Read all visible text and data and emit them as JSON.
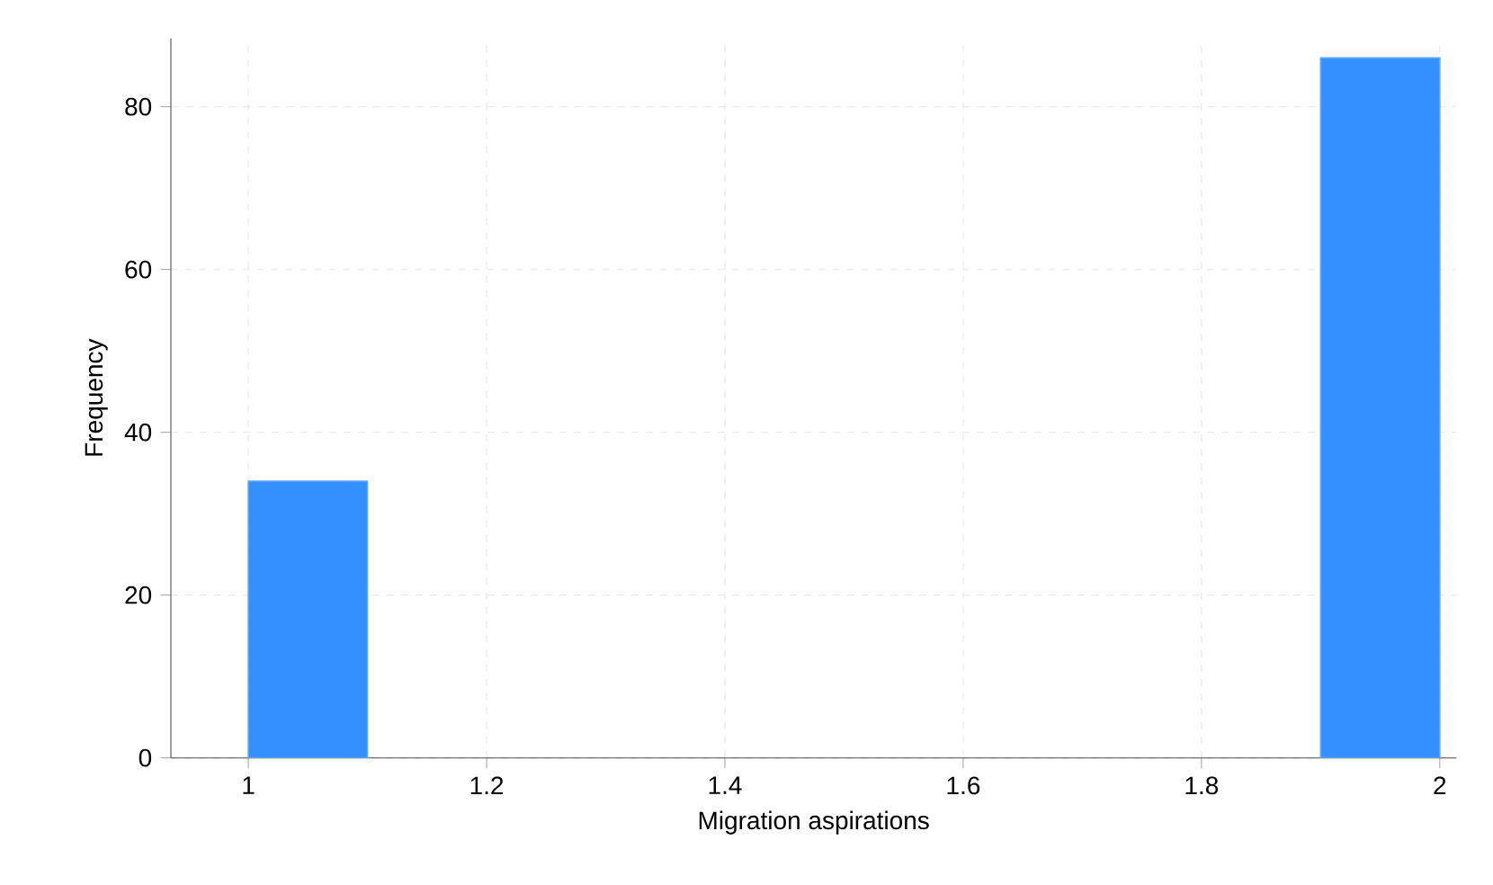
{
  "chart_data": {
    "type": "histogram",
    "xlabel": "Migration aspirations",
    "ylabel": "Frequency",
    "bins": [
      1,
      1.1,
      1.2,
      1.3,
      1.4,
      1.5,
      1.6,
      1.7,
      1.8,
      1.9,
      2
    ],
    "values": [
      34,
      0,
      0,
      0,
      0,
      0,
      0,
      0,
      0,
      86
    ],
    "color": "#3590ff",
    "xlim": [
      0.935,
      2.014
    ],
    "ylim": [
      0,
      88.4
    ],
    "xticks": [
      1,
      1.2,
      1.4,
      1.6,
      1.8,
      2
    ],
    "yticks": [
      0,
      20,
      40,
      60,
      80
    ],
    "grid": true
  }
}
